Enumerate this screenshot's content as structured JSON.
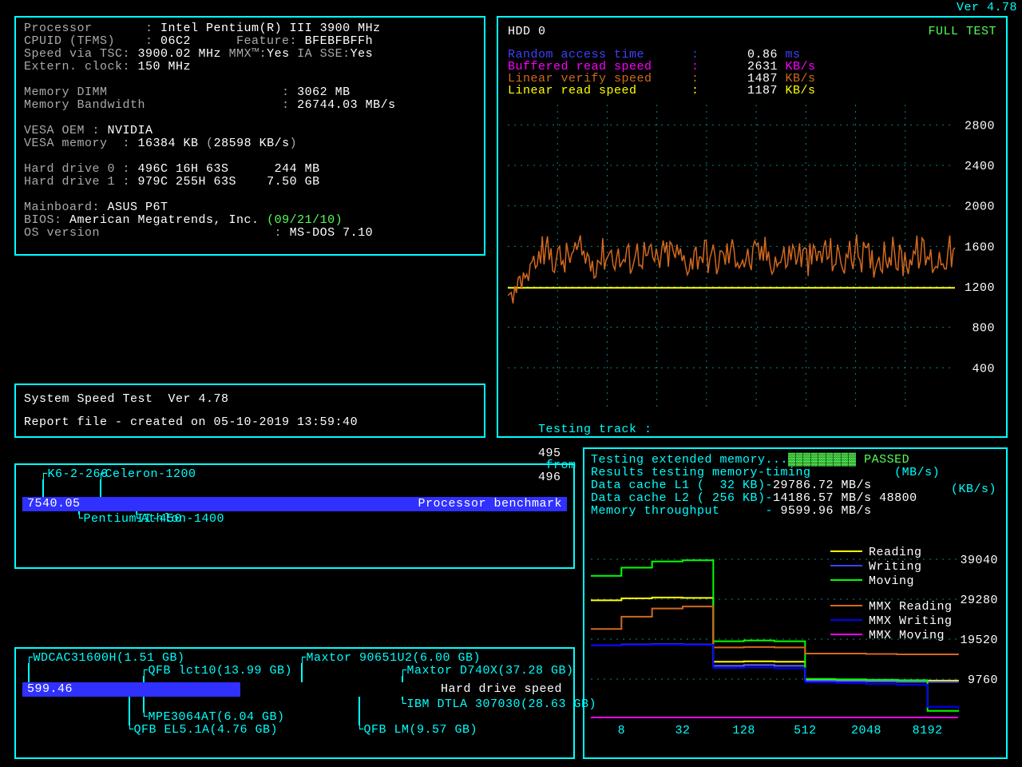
{
  "version_corner": "Ver 4.78",
  "colors": {
    "cyan": "#00ffff",
    "white": "#ffffff",
    "grey": "#aaaaaa",
    "green": "#00ff00",
    "lime": "#55ff55",
    "yellow": "#ffff00",
    "magenta": "#ff00ff",
    "orange": "#d2691e",
    "blue": "#4040ff",
    "darkorange": "#ff8c00",
    "bg": "#000000",
    "barblue": "#3030ff",
    "dotgrid": "#008888"
  },
  "sysinfo": {
    "lines": [
      [
        [
          "Processor       : ",
          "grey"
        ],
        [
          "Intel Pentium",
          "white"
        ],
        [
          "(R)",
          "white"
        ],
        [
          " III ",
          "white"
        ],
        [
          "3900 MHz",
          "white"
        ]
      ],
      [
        [
          "CPUID (TFMS)    : ",
          "grey"
        ],
        [
          "06C2      ",
          "white"
        ],
        [
          "Feature: ",
          "grey"
        ],
        [
          "BFEBFBFFh",
          "white"
        ]
      ],
      [
        [
          "Speed via TSC: ",
          "grey"
        ],
        [
          "3900.02 MHz ",
          "white"
        ],
        [
          "MMX™:",
          "grey"
        ],
        [
          "Yes ",
          "white"
        ],
        [
          "IA SSE:",
          "grey"
        ],
        [
          "Yes",
          "white"
        ]
      ],
      [
        [
          "Extern. clock: ",
          "grey"
        ],
        [
          "150 MHz",
          "white"
        ]
      ],
      [
        [
          "",
          "grey"
        ]
      ],
      [
        [
          "Memory DIMM                       : ",
          "grey"
        ],
        [
          "3062 MB",
          "white"
        ]
      ],
      [
        [
          "Memory Bandwidth                  : ",
          "grey"
        ],
        [
          "26744.03 MB/s",
          "white"
        ]
      ],
      [
        [
          "",
          "grey"
        ]
      ],
      [
        [
          "VESA OEM : ",
          "grey"
        ],
        [
          "NVIDIA",
          "white"
        ]
      ],
      [
        [
          "VESA memory  : ",
          "grey"
        ],
        [
          "16384 KB ",
          "white"
        ],
        [
          "(",
          "grey"
        ],
        [
          "28598 KB/s",
          "white"
        ],
        [
          ")",
          "grey"
        ]
      ],
      [
        [
          "",
          "grey"
        ]
      ],
      [
        [
          "Hard drive 0 : ",
          "grey"
        ],
        [
          "496C 16H 63S      ",
          "white"
        ],
        [
          "244 MB",
          "white"
        ]
      ],
      [
        [
          "Hard drive 1 : ",
          "grey"
        ],
        [
          "979C 255H 63S    ",
          "white"
        ],
        [
          "7.50 GB",
          "white"
        ]
      ],
      [
        [
          "",
          "grey"
        ]
      ],
      [
        [
          "Mainboard: ",
          "grey"
        ],
        [
          "ASUS P6T",
          "white"
        ]
      ],
      [
        [
          "BIOS: ",
          "grey"
        ],
        [
          "American Megatrends, Inc. ",
          "white"
        ],
        [
          "(09/21/10)",
          "lime"
        ]
      ],
      [
        [
          "OS version                       : ",
          "grey"
        ],
        [
          "MS-DOS 7.10",
          "white"
        ]
      ]
    ]
  },
  "report": {
    "l1": "System Speed Test  Ver 4.78",
    "l2": "Report file - created on 05-10-2019 13:59:40"
  },
  "cpu_bench": {
    "title": "Processor benchmark",
    "value": "7540.05",
    "bar_pct": 100,
    "ticks_top": [
      {
        "label": "K6-2-266",
        "pos": 2
      },
      {
        "label": "Celeron-1200",
        "pos": 10
      }
    ],
    "ticks_bot": [
      {
        "label": "Athlon-1400",
        "pos": 15
      },
      {
        "label": "PentiumII-450",
        "pos": 7
      }
    ]
  },
  "hdd_bench": {
    "title": "Hard drive speed",
    "value": "599.46",
    "bar_pct": 40,
    "ticks_top": [
      {
        "label": "WDCAC31600H(1.51 GB)",
        "pos": 0
      },
      {
        "label": "Maxtor 90651U2(6.00 GB)",
        "pos": 38
      },
      {
        "label": "QFB lct10(13.99 GB)",
        "pos": 16,
        "row": 1
      },
      {
        "label": "Maxtor D740X(37.28 GB)",
        "pos": 52,
        "row": 1
      }
    ],
    "ticks_bot": [
      {
        "label": "IBM DTLA 307030(28.63 GB)",
        "pos": 52
      },
      {
        "label": "MPE3064AT(6.04 GB)",
        "pos": 16,
        "row": 1
      },
      {
        "label": "QFB EL5.1A(4.76 GB)",
        "pos": 14,
        "row": 2
      },
      {
        "label": "QFB LM(9.57 GB)",
        "pos": 46,
        "row": 2
      }
    ]
  },
  "hdd_chart": {
    "title": "HDD 0",
    "mode": "FULL TEST",
    "metrics": [
      {
        "label": "Random access time",
        "value": "0.86",
        "unit": "ms",
        "color": "#4040ff"
      },
      {
        "label": "Buffered read speed",
        "value": "2631",
        "unit": "KB/s",
        "color": "#ff00ff"
      },
      {
        "label": "Linear verify speed",
        "value": "1487",
        "unit": "KB/s",
        "color": "#d2691e"
      },
      {
        "label": "Linear read speed",
        "value": "1187",
        "unit": "KB/s",
        "color": "#ffff00"
      }
    ],
    "ylim": [
      0,
      3000
    ],
    "yticks": [
      400,
      800,
      1200,
      1600,
      2000,
      2400,
      2800
    ],
    "status": {
      "prefix": "Testing track :",
      "cur": "495",
      "mid": "from",
      "tot": "496",
      "unit": "(KB/s)"
    },
    "yellow_line_y": 1190,
    "orange_series_base": 1500,
    "orange_noise": 180,
    "n_points": 260
  },
  "mem_chart": {
    "header": [
      [
        [
          "Testing extended memory...",
          "cyan"
        ],
        [
          "▓▓▓▓▓▓▓▓▓",
          "lime"
        ],
        [
          " PASSED",
          "lime"
        ]
      ],
      [
        [
          "Results testing memory-timing           ",
          "cyan"
        ],
        [
          "(MB/s)",
          "cyan"
        ]
      ],
      [
        [
          "Data cache L1 (  32 KB)-",
          "cyan"
        ],
        [
          "29786.72 MB/s",
          "white"
        ]
      ],
      [
        [
          "Data cache L2 ( 256 KB)-",
          "cyan"
        ],
        [
          "14186.57 MB/s ",
          "white"
        ],
        [
          "48800",
          "white"
        ]
      ],
      [
        [
          "Memory throughput      - ",
          "cyan"
        ],
        [
          "9599.96 MB/s",
          "white"
        ]
      ]
    ],
    "yticks": [
      9760,
      19520,
      29280,
      39040
    ],
    "xticks": [
      "8",
      "32",
      "128",
      "512",
      "2048",
      "8192"
    ],
    "legend": [
      {
        "label": "Reading",
        "color": "#ffff00"
      },
      {
        "label": "Writing",
        "color": "#4040ff"
      },
      {
        "label": "Moving",
        "color": "#00ff00"
      },
      {
        "label": "MMX Reading",
        "color": "#d2691e"
      },
      {
        "label": "MMX Writing",
        "color": "#0000ff"
      },
      {
        "label": "MMX Moving",
        "color": "#ff00ff"
      }
    ],
    "series": {
      "reading": {
        "color": "#ffff00",
        "y": [
          29000,
          29500,
          29700,
          29600,
          14000,
          14100,
          14000,
          9600,
          9600,
          9500,
          9400,
          9400,
          9300
        ]
      },
      "writing": {
        "color": "#6060ff",
        "y": [
          18000,
          18200,
          18300,
          18200,
          13000,
          13200,
          13000,
          9400,
          9300,
          9200,
          9100,
          9100,
          9000
        ]
      },
      "moving": {
        "color": "#00ff00",
        "y": [
          35000,
          37000,
          38500,
          38800,
          19000,
          19200,
          19000,
          9800,
          9700,
          9600,
          9500,
          2000,
          1800
        ]
      },
      "mmxread": {
        "color": "#d2691e",
        "y": [
          22000,
          25000,
          27000,
          27500,
          17500,
          17600,
          17500,
          16000,
          16000,
          15900,
          15800,
          15800,
          15700
        ]
      },
      "mmxwrite": {
        "color": "#0000ff",
        "y": [
          18000,
          18100,
          18200,
          18100,
          12500,
          12600,
          12400,
          9000,
          8800,
          8600,
          8400,
          3000,
          2500
        ]
      },
      "mmxmove": {
        "color": "#ff00ff",
        "y": [
          400,
          400,
          400,
          400,
          400,
          400,
          400,
          400,
          400,
          400,
          400,
          400,
          400
        ]
      }
    }
  }
}
